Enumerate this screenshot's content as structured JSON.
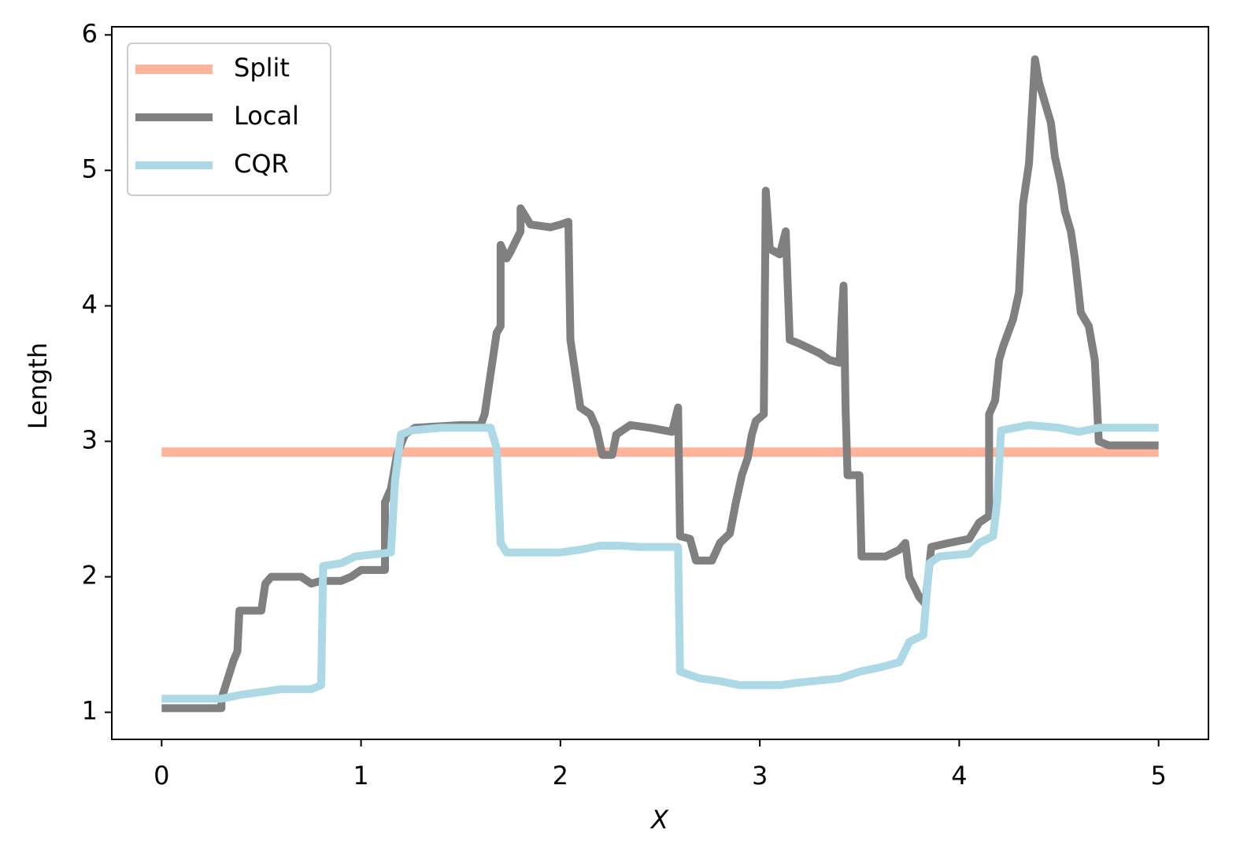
{
  "chart_data": {
    "type": "line",
    "xlabel": "X",
    "ylabel": "Length",
    "xlim": [
      -0.25,
      5.25
    ],
    "ylim": [
      0.8,
      6.06
    ],
    "xticks": [
      0,
      1,
      2,
      3,
      4,
      5
    ],
    "yticks": [
      1,
      2,
      3,
      4,
      5,
      6
    ],
    "legend": "upper left",
    "series": [
      {
        "name": "Split",
        "color": "#ffb39b",
        "width": 12,
        "x": [
          0,
          5
        ],
        "values": [
          2.92,
          2.92
        ]
      },
      {
        "name": "Local",
        "color": "#808080",
        "width": 10,
        "x": [
          0,
          0.3,
          0.3,
          0.36,
          0.38,
          0.39,
          0.5,
          0.52,
          0.55,
          0.7,
          0.75,
          0.8,
          0.9,
          0.95,
          1.0,
          1.12,
          1.12,
          1.15,
          1.18,
          1.22,
          1.27,
          1.5,
          1.6,
          1.62,
          1.65,
          1.68,
          1.7,
          1.7,
          1.73,
          1.75,
          1.8,
          1.8,
          1.85,
          1.95,
          2.0,
          2.04,
          2.05,
          2.07,
          2.1,
          2.15,
          2.18,
          2.21,
          2.26,
          2.28,
          2.35,
          2.45,
          2.56,
          2.59,
          2.6,
          2.65,
          2.68,
          2.76,
          2.8,
          2.85,
          2.88,
          2.91,
          2.94,
          2.96,
          2.98,
          3.02,
          3.03,
          3.05,
          3.1,
          3.13,
          3.15,
          3.2,
          3.3,
          3.35,
          3.4,
          3.41,
          3.42,
          3.43,
          3.44,
          3.5,
          3.51,
          3.63,
          3.7,
          3.73,
          3.75,
          3.8,
          3.83,
          3.86,
          3.95,
          4.05,
          4.1,
          4.15,
          4.15,
          4.18,
          4.2,
          4.22,
          4.27,
          4.3,
          4.32,
          4.35,
          4.38,
          4.4,
          4.43,
          4.46,
          4.48,
          4.51,
          4.53,
          4.56,
          4.58,
          4.61,
          4.65,
          4.68,
          4.7,
          4.75,
          5.0
        ],
        "values": [
          1.03,
          1.03,
          1.1,
          1.38,
          1.45,
          1.75,
          1.75,
          1.95,
          2.0,
          2.0,
          1.95,
          1.97,
          1.97,
          2.0,
          2.05,
          2.05,
          2.55,
          2.65,
          2.9,
          3.05,
          3.1,
          3.12,
          3.12,
          3.2,
          3.5,
          3.8,
          3.85,
          4.45,
          4.35,
          4.4,
          4.55,
          4.72,
          4.6,
          4.58,
          4.6,
          4.62,
          3.75,
          3.55,
          3.25,
          3.2,
          3.1,
          2.9,
          2.9,
          3.05,
          3.12,
          3.1,
          3.07,
          3.25,
          2.3,
          2.28,
          2.12,
          2.12,
          2.25,
          2.32,
          2.55,
          2.75,
          2.88,
          3.05,
          3.15,
          3.2,
          4.85,
          4.42,
          4.38,
          4.55,
          3.75,
          3.72,
          3.65,
          3.6,
          3.58,
          3.9,
          4.15,
          3.25,
          2.75,
          2.75,
          2.15,
          2.15,
          2.2,
          2.25,
          2.0,
          1.85,
          1.8,
          2.22,
          2.25,
          2.28,
          2.4,
          2.45,
          3.2,
          3.3,
          3.6,
          3.7,
          3.9,
          4.1,
          4.75,
          5.05,
          5.82,
          5.65,
          5.5,
          5.35,
          5.1,
          4.9,
          4.7,
          4.55,
          4.35,
          3.95,
          3.85,
          3.6,
          3.0,
          2.97,
          2.97
        ]
      },
      {
        "name": "CQR",
        "color": "#add8e6",
        "width": 10,
        "x": [
          0,
          0.3,
          0.4,
          0.5,
          0.6,
          0.75,
          0.8,
          0.81,
          0.9,
          0.97,
          1.15,
          1.17,
          1.2,
          1.25,
          1.4,
          1.65,
          1.68,
          1.7,
          1.73,
          2.0,
          2.1,
          2.2,
          2.3,
          2.4,
          2.59,
          2.6,
          2.7,
          2.8,
          2.9,
          3.1,
          3.2,
          3.4,
          3.5,
          3.6,
          3.7,
          3.75,
          3.82,
          3.85,
          3.9,
          4.05,
          4.1,
          4.17,
          4.19,
          4.21,
          4.35,
          4.5,
          4.6,
          4.7,
          5.0
        ],
        "values": [
          1.1,
          1.1,
          1.13,
          1.15,
          1.17,
          1.17,
          1.2,
          2.08,
          2.1,
          2.15,
          2.18,
          2.7,
          3.05,
          3.08,
          3.1,
          3.1,
          2.95,
          2.25,
          2.18,
          2.18,
          2.2,
          2.23,
          2.23,
          2.22,
          2.22,
          1.3,
          1.25,
          1.23,
          1.2,
          1.2,
          1.22,
          1.25,
          1.3,
          1.33,
          1.37,
          1.52,
          1.57,
          2.1,
          2.15,
          2.17,
          2.25,
          2.3,
          2.55,
          3.08,
          3.12,
          3.1,
          3.07,
          3.1,
          3.1
        ]
      }
    ]
  }
}
